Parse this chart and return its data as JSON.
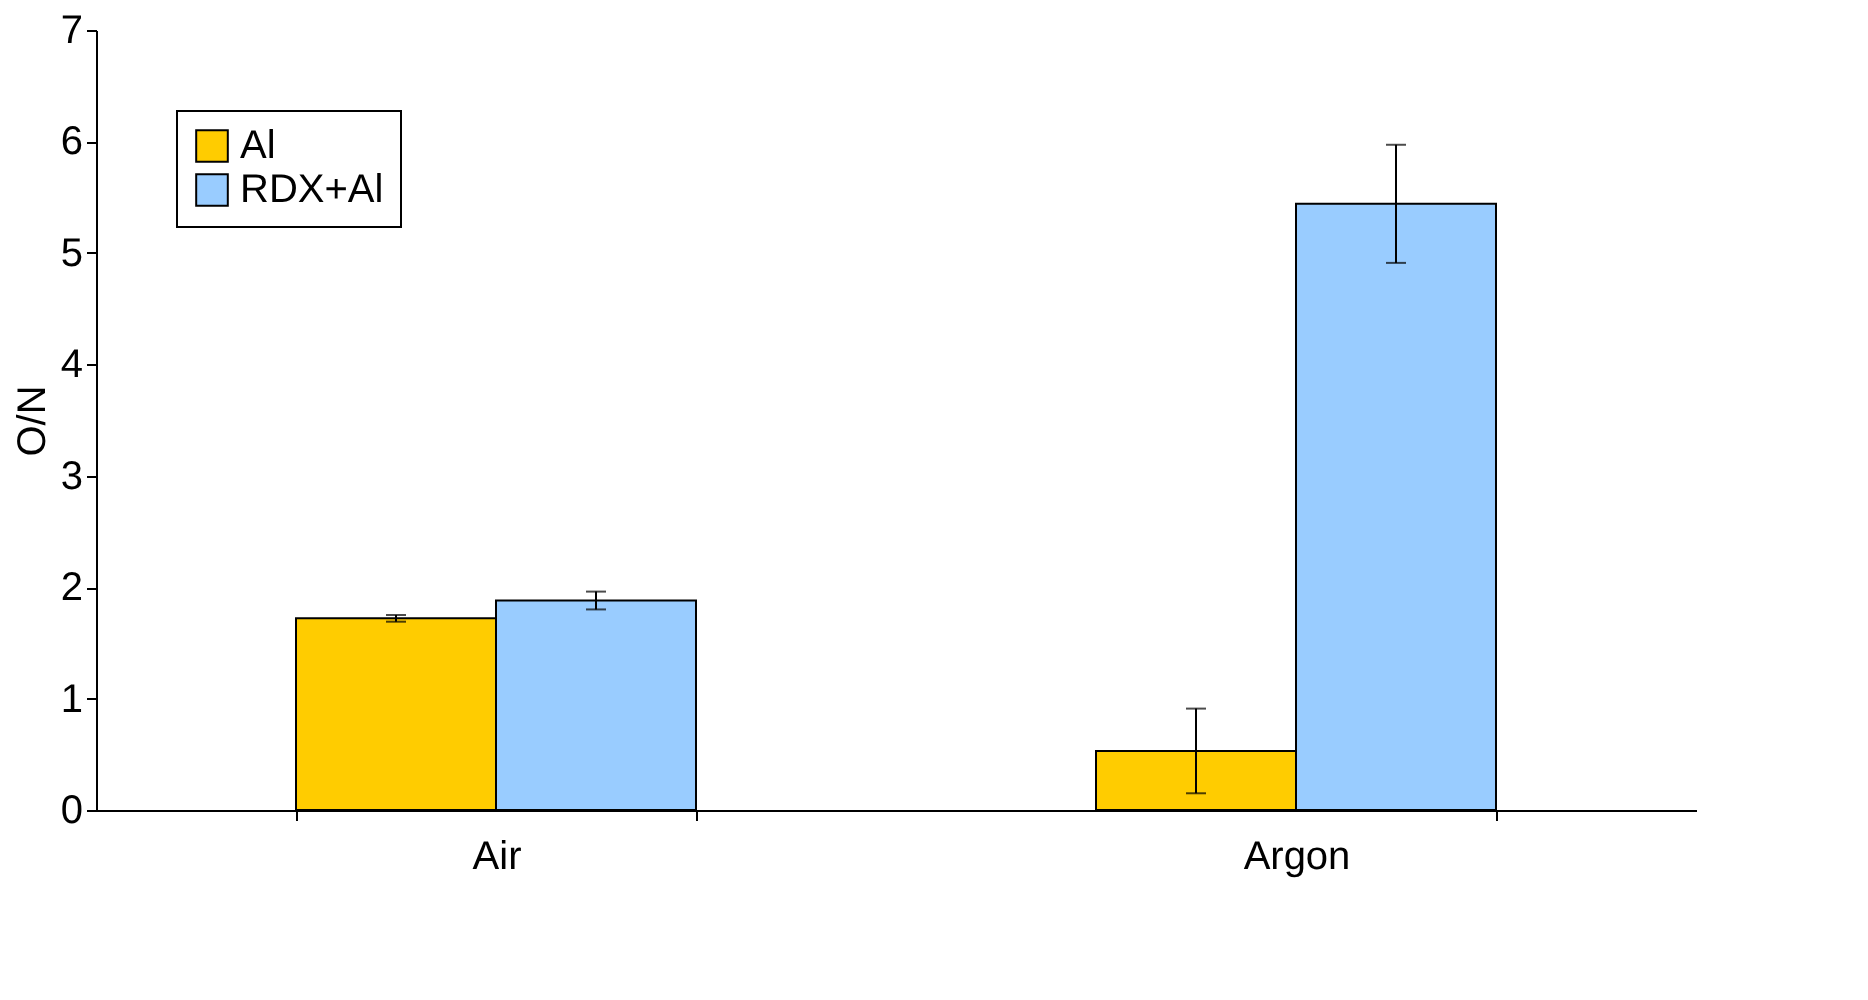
{
  "chart_data": {
    "type": "bar",
    "ylabel": "O/N",
    "categories": [
      "Air",
      "Argon"
    ],
    "series": [
      {
        "name": "Al",
        "color": "#ffcc00",
        "values": [
          1.72,
          0.53
        ],
        "errors": [
          0.03,
          0.38
        ]
      },
      {
        "name": "RDX+Al",
        "color": "#99ccff",
        "values": [
          1.88,
          5.44
        ],
        "errors": [
          0.08,
          0.53
        ]
      }
    ],
    "ylim": [
      0,
      7
    ],
    "yticks": [
      0,
      1,
      2,
      3,
      4,
      5,
      6,
      7
    ],
    "grid": false,
    "legend": "top left"
  }
}
